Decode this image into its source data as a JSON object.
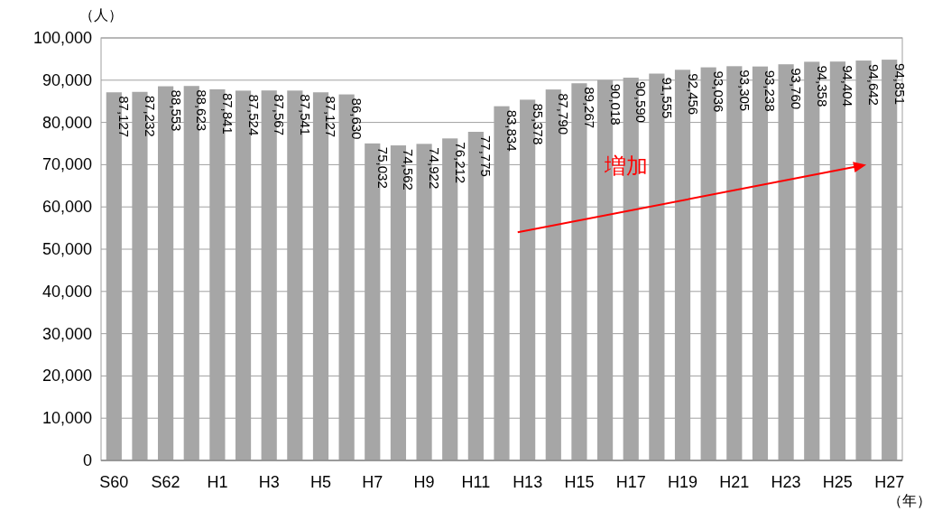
{
  "chart_data": {
    "type": "bar",
    "categories": [
      "S60",
      null,
      "S62",
      null,
      "H1",
      null,
      "H3",
      null,
      "H5",
      null,
      "H7",
      null,
      "H9",
      null,
      "H11",
      null,
      "H13",
      null,
      "H15",
      null,
      "H17",
      null,
      "H19",
      null,
      "H21",
      null,
      "H23",
      null,
      "H25",
      null,
      "H27"
    ],
    "values": [
      87127,
      87232,
      88553,
      88623,
      87841,
      87524,
      87567,
      87541,
      87127,
      86630,
      75032,
      74562,
      74922,
      76212,
      77775,
      83834,
      85378,
      87790,
      89267,
      90018,
      90590,
      91555,
      92456,
      93036,
      93305,
      93238,
      93760,
      94358,
      94404,
      94642,
      94851
    ],
    "value_labels": [
      "87,127",
      "87,232",
      "88,553",
      "88,623",
      "87,841",
      "87,524",
      "87,567",
      "87,541",
      "87,127",
      "86,630",
      "75,032",
      "74,562",
      "74,922",
      "76,212",
      "77,775",
      "83,834",
      "85,378",
      "87,790",
      "89,267",
      "90,018",
      "90,590",
      "91,555",
      "92,456",
      "93,036",
      "93,305",
      "93,238",
      "93,760",
      "94,358",
      "94,404",
      "94,642",
      "94,851"
    ],
    "color": "#a6a6a6",
    "ylim": [
      0,
      100000
    ],
    "yticks": [
      0,
      {
        "value": 10000,
        "label": "10,000"
      },
      {
        "value": 20000,
        "label": "20,000"
      },
      {
        "value": 30000,
        "label": "30,000"
      },
      {
        "value": 40000,
        "label": "40,000"
      },
      {
        "value": 50000,
        "label": "50,000"
      },
      {
        "value": 60000,
        "label": "60,000"
      },
      {
        "value": 70000,
        "label": "70,000"
      },
      {
        "value": 80000,
        "label": "80,000"
      },
      {
        "value": 90000,
        "label": "90,000"
      },
      {
        "value": 100000,
        "label": "100,000"
      }
    ],
    "grid": "y",
    "ylabel": "（人）",
    "xlabel": "（年）",
    "annotations": [
      "増加"
    ]
  }
}
